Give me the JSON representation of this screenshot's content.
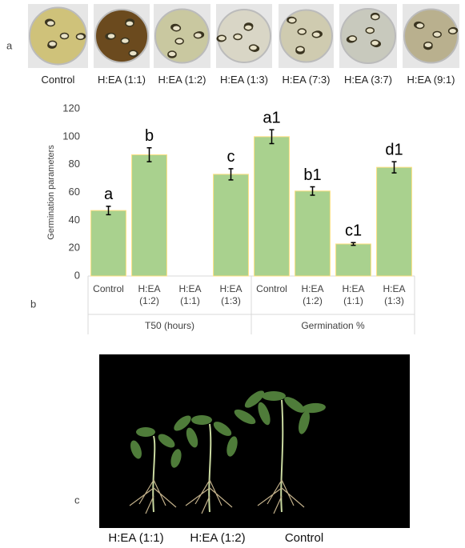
{
  "panel_a": {
    "letter": "a",
    "labels": [
      "Control",
      "H:EA (1:1)",
      "H:EA (1:2)",
      "H:EA (1:3)",
      "H:EA (7:3)",
      "H:EA (3:7)",
      "H:EA (9:1)"
    ]
  },
  "chart_data": {
    "type": "bar",
    "panel_letter": "b",
    "y_label": "Germination parameters",
    "ylim": [
      0,
      120
    ],
    "yticks": [
      0,
      20,
      40,
      60,
      80,
      100,
      120
    ],
    "color": "#a9d18e",
    "edge_color": "#ffe082",
    "groups": [
      {
        "name": "T50 (hours)",
        "categories": [
          "Control",
          "H:EA (1:2)",
          "H:EA (1:1)",
          "H:EA (1:3)"
        ],
        "values": [
          47,
          87,
          null,
          73
        ],
        "errors": [
          3,
          5,
          null,
          4
        ],
        "letters": [
          "a",
          "b",
          null,
          "c"
        ]
      },
      {
        "name": "Germination %",
        "categories": [
          "Control",
          "H:EA (1:2)",
          "H:EA (1:1)",
          "H:EA (1:3)"
        ],
        "values": [
          100,
          61,
          23,
          78
        ],
        "errors": [
          5,
          3,
          1,
          4
        ],
        "letters": [
          "a1",
          "b1",
          "c1",
          "d1"
        ]
      }
    ]
  },
  "panel_c": {
    "letter": "c",
    "labels": [
      "H:EA (1:1)",
      "H:EA (1:2)",
      "Control"
    ]
  }
}
